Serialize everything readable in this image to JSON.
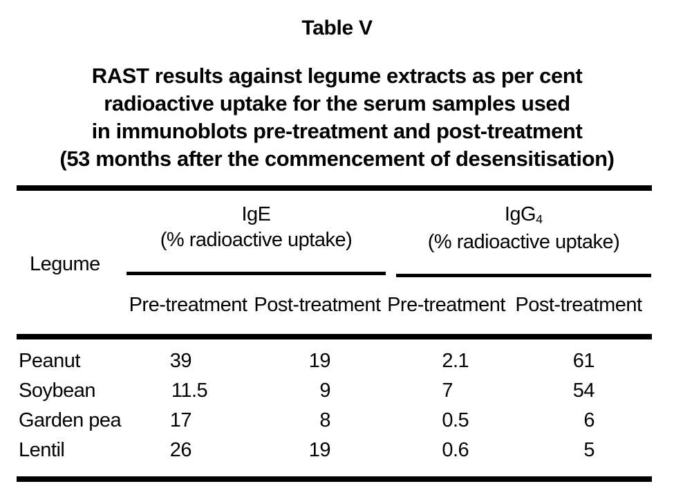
{
  "title": "Table V",
  "caption": {
    "lines": [
      "RAST results against legume extracts as per cent",
      "radioactive uptake for the serum samples used",
      "in immunoblots pre-treatment and post-treatment",
      "(53 months after the commencement of desensitisation)"
    ]
  },
  "table": {
    "row_header": "Legume",
    "groups": [
      {
        "label": "IgE",
        "subscript": "",
        "sub": "(% radioactive uptake)"
      },
      {
        "label": "IgG",
        "subscript": "4",
        "sub": "(% radioactive uptake)"
      }
    ],
    "columns": [
      "Pre-treatment",
      "Post-treatment",
      "Pre-treatment",
      "Post-treatment"
    ],
    "rows": [
      {
        "legume": "Peanut",
        "values": [
          "39",
          "19",
          "2.1",
          "61"
        ]
      },
      {
        "legume": "Soybean",
        "values": [
          "11.5",
          "9",
          "7",
          "54"
        ]
      },
      {
        "legume": "Garden pea",
        "values": [
          "17",
          "8",
          "0.5",
          "6"
        ]
      },
      {
        "legume": "Lentil",
        "values": [
          "26",
          "19",
          "0.6",
          "5"
        ]
      }
    ]
  },
  "colors": {
    "text": "#000000",
    "background": "#ffffff",
    "rule": "#000000"
  }
}
